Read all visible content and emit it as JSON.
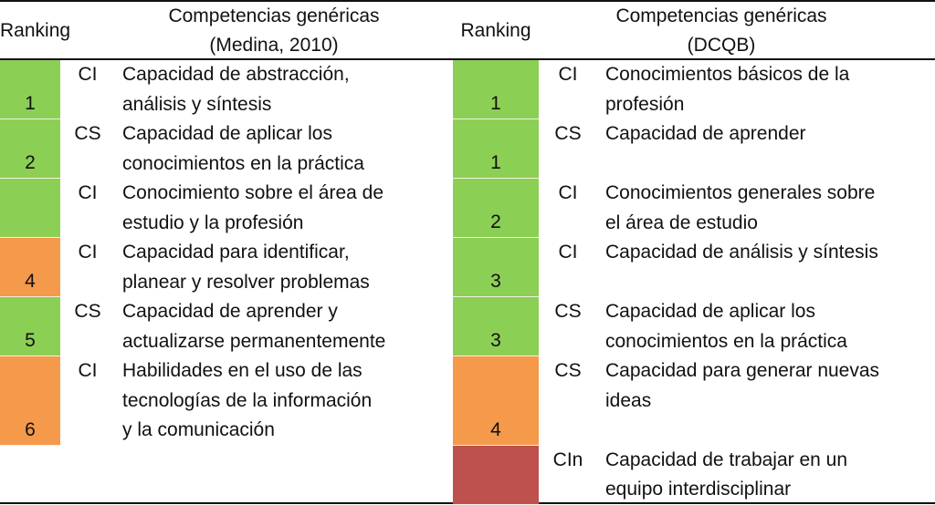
{
  "colors": {
    "green": "#8ccf55",
    "orange": "#f5994b",
    "red": "#be504e"
  },
  "left": {
    "header": {
      "ranking": "Ranking",
      "title_line1": "Competencias genéricas",
      "title_line2": "(Medina, 2010)"
    },
    "rows": [
      {
        "rank": "1",
        "color": "green",
        "code": "CI",
        "text": "Capacidad de abstracción,\nanálisis y síntesis",
        "lines": 2
      },
      {
        "rank": "2",
        "color": "green",
        "code": "CS",
        "text": "Capacidad de aplicar los\nconocimientos en la práctica",
        "lines": 2
      },
      {
        "rank": "",
        "color": "green",
        "code": "CI",
        "text": "Conocimiento sobre el área de\nestudio y la profesión",
        "lines": 2
      },
      {
        "rank": "4",
        "color": "orange",
        "code": "CI",
        "text": "Capacidad para identificar,\nplanear y resolver problemas",
        "lines": 2
      },
      {
        "rank": "5",
        "color": "green",
        "code": "CS",
        "text": "Capacidad de aprender y\nactualizarse permanentemente",
        "lines": 2
      },
      {
        "rank": "6",
        "color": "orange",
        "code": "CI",
        "text": "Habilidades en el uso de las\ntecnologías de la información\ny la comunicación",
        "lines": 3
      }
    ]
  },
  "right": {
    "header": {
      "ranking": "Ranking",
      "title_line1": "Competencias genéricas",
      "title_line2": "(DCQB)"
    },
    "rows": [
      {
        "rank": "1",
        "color": "green",
        "code": "CI",
        "text": "Conocimientos básicos de la\nprofesión",
        "lines": 2
      },
      {
        "rank": "1",
        "color": "green",
        "code": "CS",
        "text": "Capacidad de aprender",
        "lines": 2
      },
      {
        "rank": "2",
        "color": "green",
        "code": "CI",
        "text": "Conocimientos generales sobre\nel área de estudio",
        "lines": 2
      },
      {
        "rank": "3",
        "color": "green",
        "code": "CI",
        "text": "Capacidad de análisis y síntesis",
        "lines": 2
      },
      {
        "rank": "3",
        "color": "green",
        "code": "CS",
        "text": "Capacidad de aplicar los\nconocimientos en la práctica",
        "lines": 2
      },
      {
        "rank": "4",
        "color": "orange",
        "code": "CS",
        "text": "Capacidad para generar nuevas\nideas",
        "lines": 3
      },
      {
        "rank": "",
        "color": "red",
        "code": "CIn",
        "text": "Capacidad de trabajar en un\nequipo interdisciplinar",
        "lines": 2
      }
    ]
  }
}
